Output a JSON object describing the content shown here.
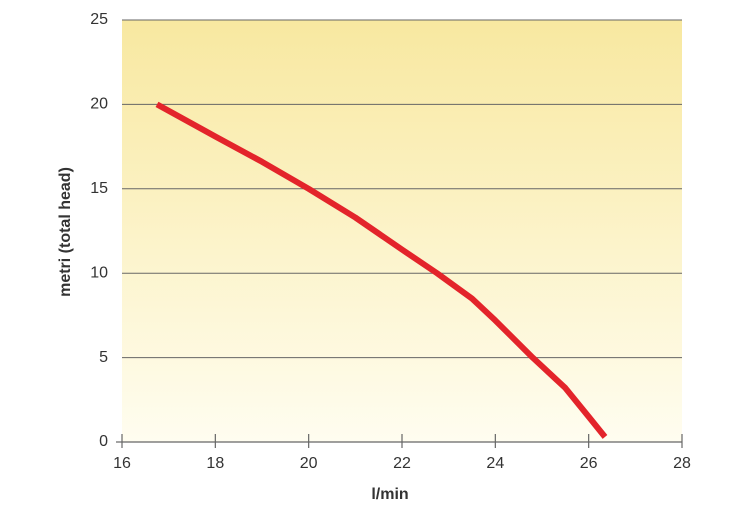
{
  "chart_data": {
    "type": "line",
    "x_label": "l/min",
    "y_label": "metri (total head)",
    "x": [
      16.75,
      18,
      19,
      20,
      21,
      22,
      22.75,
      23.5,
      24,
      24.8,
      25.5,
      26,
      26.35
    ],
    "series": [
      {
        "color": "#e3242b",
        "values": [
          20,
          18.1,
          16.6,
          15,
          13.3,
          11.4,
          10,
          8.5,
          7.2,
          5,
          3.2,
          1.5,
          0.3
        ]
      }
    ],
    "xlim": [
      16,
      28
    ],
    "xticks": [
      16,
      18,
      20,
      22,
      24,
      26,
      28
    ],
    "ylim": [
      0,
      25
    ],
    "yticks": [
      0,
      5,
      10,
      15,
      20,
      25
    ],
    "grid": true
  }
}
